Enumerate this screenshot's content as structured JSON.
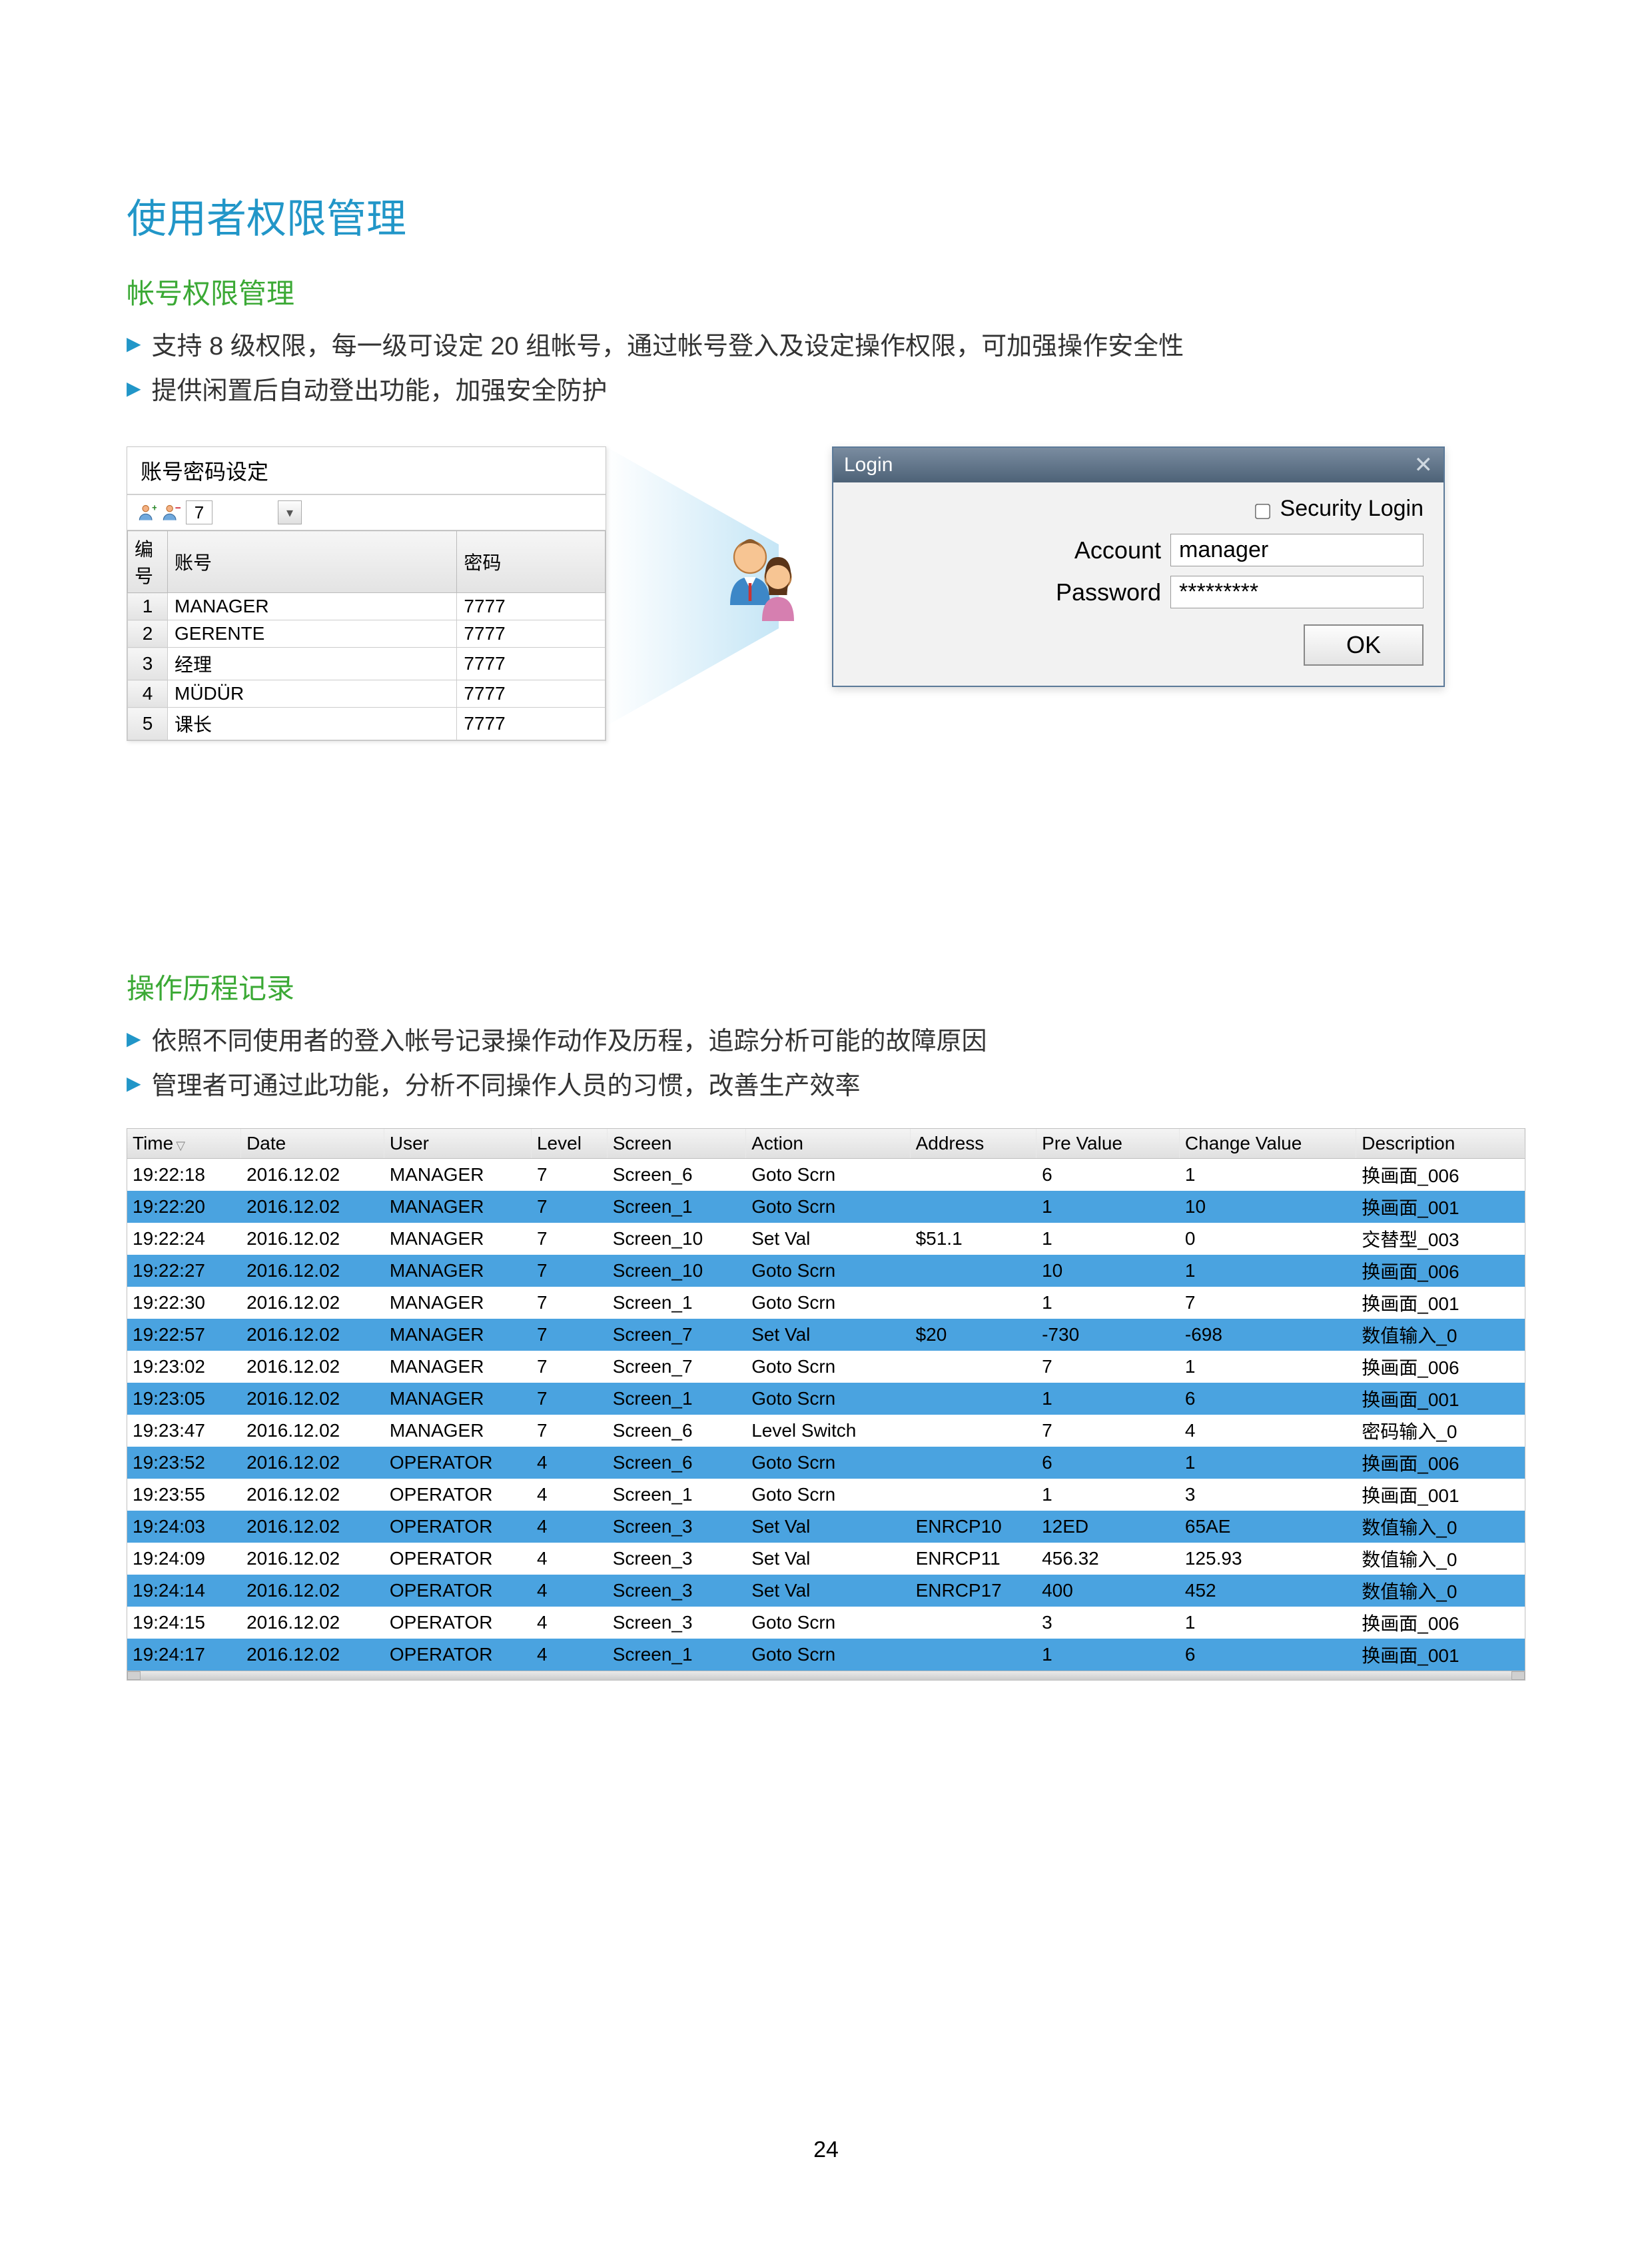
{
  "page": {
    "title": "使用者权限管理",
    "number": "24"
  },
  "section1": {
    "title": "帐号权限管理",
    "bullets": [
      "支持 8 级权限，每一级可设定 20 组帐号，通过帐号登入及设定操作权限，可加强操作安全性",
      "提供闲置后自动登出功能，加强安全防护"
    ]
  },
  "pwd_panel": {
    "title": "账号密码设定",
    "level": "7",
    "columns": [
      "编号",
      "账号",
      "密码"
    ],
    "rows": [
      [
        "1",
        "MANAGER",
        "7777"
      ],
      [
        "2",
        "GERENTE",
        "7777"
      ],
      [
        "3",
        "经理",
        "7777"
      ],
      [
        "4",
        "MÜDÜR",
        "7777"
      ],
      [
        "5",
        "课长",
        "7777"
      ]
    ]
  },
  "login": {
    "title": "Login",
    "security_label": "Security Login",
    "account_label": "Account",
    "account_value": "manager",
    "password_label": "Password",
    "password_value": "*********",
    "ok_label": "OK"
  },
  "section2": {
    "title": "操作历程记录",
    "bullets": [
      "依照不同使用者的登入帐号记录操作动作及历程，追踪分析可能的故障原因",
      "管理者可通过此功能，分析不同操作人员的习惯，改善生产效率"
    ]
  },
  "log": {
    "columns": [
      "Time",
      "Date",
      "User",
      "Level",
      "Screen",
      "Action",
      "Address",
      "Pre Value",
      "Change Value",
      "Description"
    ],
    "col_widths": [
      "135",
      "170",
      "175",
      "90",
      "165",
      "195",
      "150",
      "170",
      "210",
      "200"
    ],
    "highlight_color": "#4aa3e0",
    "rows": [
      {
        "hl": false,
        "cells": [
          "19:22:18",
          "2016.12.02",
          "MANAGER",
          "7",
          "Screen_6",
          "Goto Scrn",
          "",
          "6",
          "1",
          "换画面_006"
        ]
      },
      {
        "hl": true,
        "cells": [
          "19:22:20",
          "2016.12.02",
          "MANAGER",
          "7",
          "Screen_1",
          "Goto Scrn",
          "",
          "1",
          "10",
          "换画面_001"
        ]
      },
      {
        "hl": false,
        "cells": [
          "19:22:24",
          "2016.12.02",
          "MANAGER",
          "7",
          "Screen_10",
          "Set Val",
          "$51.1",
          "1",
          "0",
          "交替型_003"
        ]
      },
      {
        "hl": true,
        "cells": [
          "19:22:27",
          "2016.12.02",
          "MANAGER",
          "7",
          "Screen_10",
          "Goto Scrn",
          "",
          "10",
          "1",
          "换画面_006"
        ]
      },
      {
        "hl": false,
        "cells": [
          "19:22:30",
          "2016.12.02",
          "MANAGER",
          "7",
          "Screen_1",
          "Goto Scrn",
          "",
          "1",
          "7",
          "换画面_001"
        ]
      },
      {
        "hl": true,
        "cells": [
          "19:22:57",
          "2016.12.02",
          "MANAGER",
          "7",
          "Screen_7",
          "Set Val",
          "$20",
          "-730",
          "-698",
          "数值输入_0"
        ]
      },
      {
        "hl": false,
        "cells": [
          "19:23:02",
          "2016.12.02",
          "MANAGER",
          "7",
          "Screen_7",
          "Goto Scrn",
          "",
          "7",
          "1",
          "换画面_006"
        ]
      },
      {
        "hl": true,
        "cells": [
          "19:23:05",
          "2016.12.02",
          "MANAGER",
          "7",
          "Screen_1",
          "Goto Scrn",
          "",
          "1",
          "6",
          "换画面_001"
        ]
      },
      {
        "hl": false,
        "cells": [
          "19:23:47",
          "2016.12.02",
          "MANAGER",
          "7",
          "Screen_6",
          "Level Switch",
          "",
          "7",
          "4",
          "密码输入_0"
        ]
      },
      {
        "hl": true,
        "cells": [
          "19:23:52",
          "2016.12.02",
          "OPERATOR",
          "4",
          "Screen_6",
          "Goto Scrn",
          "",
          "6",
          "1",
          "换画面_006"
        ]
      },
      {
        "hl": false,
        "cells": [
          "19:23:55",
          "2016.12.02",
          "OPERATOR",
          "4",
          "Screen_1",
          "Goto Scrn",
          "",
          "1",
          "3",
          "换画面_001"
        ]
      },
      {
        "hl": true,
        "cells": [
          "19:24:03",
          "2016.12.02",
          "OPERATOR",
          "4",
          "Screen_3",
          "Set Val",
          "ENRCP10",
          "12ED",
          "65AE",
          "数值输入_0"
        ]
      },
      {
        "hl": false,
        "cells": [
          "19:24:09",
          "2016.12.02",
          "OPERATOR",
          "4",
          "Screen_3",
          "Set Val",
          "ENRCP11",
          "456.32",
          "125.93",
          "数值输入_0"
        ]
      },
      {
        "hl": true,
        "cells": [
          "19:24:14",
          "2016.12.02",
          "OPERATOR",
          "4",
          "Screen_3",
          "Set Val",
          "ENRCP17",
          "400",
          "452",
          "数值输入_0"
        ]
      },
      {
        "hl": false,
        "cells": [
          "19:24:15",
          "2016.12.02",
          "OPERATOR",
          "4",
          "Screen_3",
          "Goto Scrn",
          "",
          "3",
          "1",
          "换画面_006"
        ]
      },
      {
        "hl": true,
        "cells": [
          "19:24:17",
          "2016.12.02",
          "OPERATOR",
          "4",
          "Screen_1",
          "Goto Scrn",
          "",
          "1",
          "6",
          "换画面_001"
        ]
      }
    ]
  }
}
